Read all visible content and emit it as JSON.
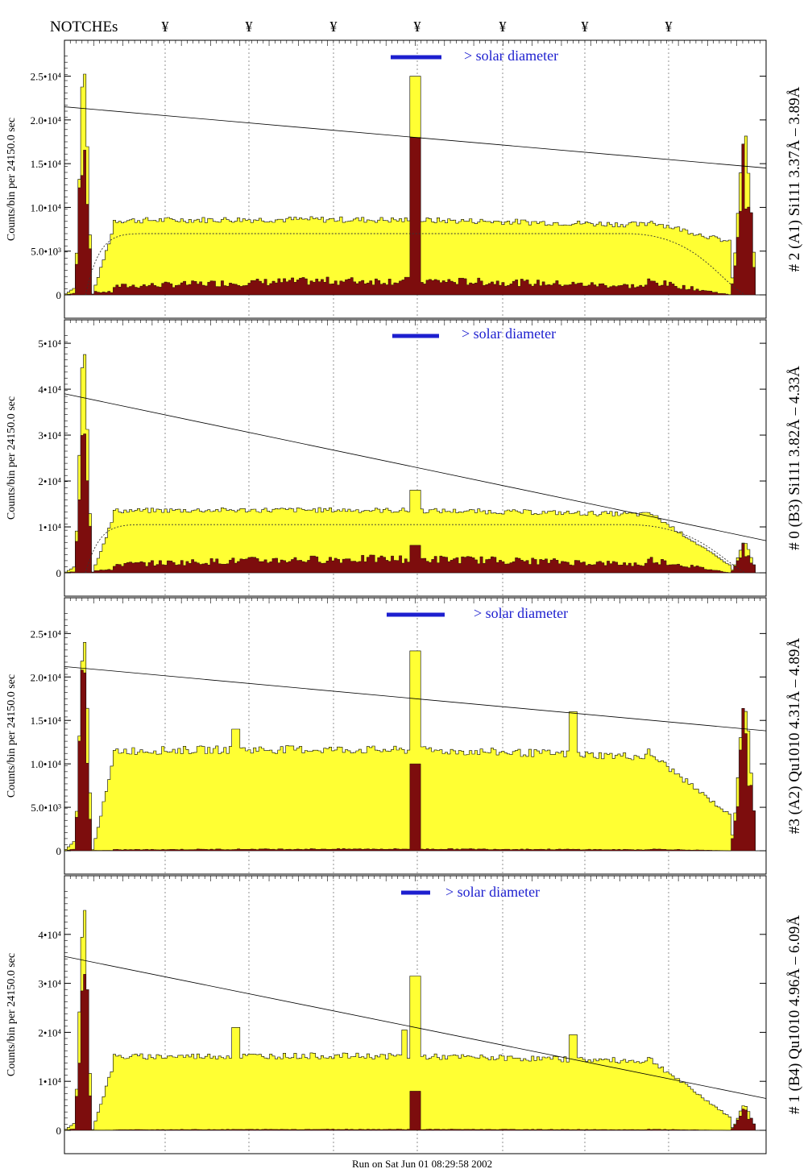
{
  "header": {
    "notches_label": "NOTCHEs",
    "notch_symbol": "¥",
    "notch_count": 7
  },
  "footer": {
    "run_text": "Run on Sat Jun 01 08:29:58 2002"
  },
  "colors": {
    "fill_main": "#ffff33",
    "fill_second": "#7d0d0d",
    "solar_bar": "#1d1fcf",
    "text_blue": "#1d1fcf",
    "frame": "#000000"
  },
  "chart_data": [
    {
      "type": "histogram",
      "side_label": "# 2 (A1) Si111  3.37Å – 3.89Å",
      "ylabel": "Counts/bin per  24150.0 sec",
      "solar_label": "> solar diameter",
      "yticks": [
        {
          "label": "0",
          "v": 0
        },
        {
          "label": "5.0•10³",
          "v": 5000
        },
        {
          "label": "1.0•10⁴",
          "v": 10000
        },
        {
          "label": "1.5•10⁴",
          "v": 15000
        },
        {
          "label": "2.0•10⁴",
          "v": 20000
        },
        {
          "label": "2.5•10⁴",
          "v": 25000
        }
      ],
      "ymax": 28000,
      "plateau": 8500,
      "plateau_end": 6000,
      "second_level": 1600,
      "edge_peak_left": 26000,
      "edge_peak_right": 18000,
      "center_peak": 25000,
      "center_second": 18000,
      "mid_peaks": [],
      "trend_line": [
        21500,
        14500
      ],
      "dotted_level": 7000
    },
    {
      "type": "histogram",
      "side_label": "# 0 (B3) Si111  3.82Å – 4.33Å",
      "ylabel": "Counts/bin per  24150.0 sec",
      "solar_label": "> solar diameter",
      "yticks": [
        {
          "label": "0",
          "v": 0
        },
        {
          "label": "1•10⁴",
          "v": 10000
        },
        {
          "label": "2•10⁴",
          "v": 20000
        },
        {
          "label": "3•10⁴",
          "v": 30000
        },
        {
          "label": "4•10⁴",
          "v": 40000
        },
        {
          "label": "5•10⁴",
          "v": 50000
        }
      ],
      "ymax": 53000,
      "plateau": 13500,
      "plateau_end": 1500,
      "second_level": 3000,
      "edge_peak_left": 50000,
      "edge_peak_right": 6500,
      "center_peak": 18000,
      "center_second": 6000,
      "mid_peaks": [],
      "trend_line": [
        39000,
        7000
      ],
      "dotted_level": 10500
    },
    {
      "type": "histogram",
      "side_label": "#3 (A2) Qu1010  4.31Å – 4.89Å",
      "ylabel": "Counts/bin per  24150.0 sec",
      "solar_label": "> solar diameter",
      "yticks": [
        {
          "label": "0",
          "v": 0
        },
        {
          "label": "5.0•10³",
          "v": 5000
        },
        {
          "label": "1.0•10⁴",
          "v": 10000
        },
        {
          "label": "1.5•10⁴",
          "v": 15000
        },
        {
          "label": "2.0•10⁴",
          "v": 20000
        },
        {
          "label": "2.5•10⁴",
          "v": 25000
        }
      ],
      "ymax": 28000,
      "plateau": 11500,
      "plateau_end": 4000,
      "second_level": 200,
      "edge_peak_left": 25000,
      "edge_peak_right": 17000,
      "center_peak": 23000,
      "center_second": 10000,
      "mid_peaks": [
        {
          "f": 0.245,
          "v": 14000
        },
        {
          "f": 0.725,
          "v": 16000
        }
      ],
      "trend_line": [
        21200,
        13800
      ],
      "dotted_level": null
    },
    {
      "type": "histogram",
      "side_label": "# 1 (B4) Qu1010 4.96Å – 6.09Å",
      "ylabel": "Counts/bin per  24150.0 sec",
      "solar_label": "> solar diameter",
      "yticks": [
        {
          "label": "0",
          "v": 0
        },
        {
          "label": "1•10⁴",
          "v": 10000
        },
        {
          "label": "2•10⁴",
          "v": 20000
        },
        {
          "label": "3•10⁴",
          "v": 30000
        },
        {
          "label": "4•10⁴",
          "v": 40000
        }
      ],
      "ymax": 50000,
      "plateau": 15000,
      "plateau_end": 2500,
      "second_level": 200,
      "edge_peak_left": 45500,
      "edge_peak_right": 5000,
      "center_peak": 31500,
      "center_second": 8000,
      "mid_peaks": [
        {
          "f": 0.245,
          "v": 21000
        },
        {
          "f": 0.725,
          "v": 19500
        },
        {
          "f": 0.485,
          "v": 20500
        }
      ],
      "trend_line": [
        35500,
        6500
      ],
      "dotted_level": null
    }
  ]
}
